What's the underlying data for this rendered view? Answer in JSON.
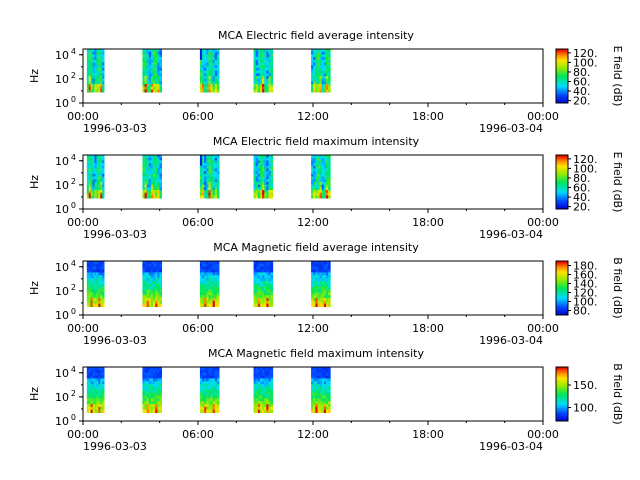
{
  "figure": {
    "date_start": "1996-03-03",
    "date_end": "1996-03-04"
  },
  "chart_data": [
    {
      "type": "heatmap",
      "title": "MCA  Electric field average intensity",
      "ylabel": "Hz",
      "x_ticks": [
        "00:00",
        "06:00",
        "12:00",
        "18:00",
        "00:00"
      ],
      "x_range": [
        "1996-03-03T00:00",
        "1996-03-04T00:00"
      ],
      "y_scale": "log",
      "y_range": [
        1,
        30000
      ],
      "y_ticks": [
        {
          "value": 1,
          "base": "10",
          "exp": "0"
        },
        {
          "value": 100,
          "base": "10",
          "exp": "2"
        },
        {
          "value": 10000,
          "base": "10",
          "exp": "4"
        }
      ],
      "colorbar": {
        "label": "E field (dB)",
        "range": [
          15,
          128
        ],
        "ticks": [
          "20.",
          "40.",
          "60.",
          "80.",
          "100.",
          "120."
        ],
        "tick_values": [
          20,
          40,
          60,
          80,
          100,
          120
        ]
      },
      "passes": [
        {
          "start_h": 0.2,
          "end_h": 1.1
        },
        {
          "start_h": 3.1,
          "end_h": 4.1
        },
        {
          "start_h": 6.1,
          "end_h": 7.1
        },
        {
          "start_h": 8.9,
          "end_h": 9.9
        },
        {
          "start_h": 11.9,
          "end_h": 12.9
        }
      ],
      "low_freq_limit_hz": 8
    },
    {
      "type": "heatmap",
      "title": "MCA  Electric field maximum intensity",
      "ylabel": "Hz",
      "x_ticks": [
        "00:00",
        "06:00",
        "12:00",
        "18:00",
        "00:00"
      ],
      "x_range": [
        "1996-03-03T00:00",
        "1996-03-04T00:00"
      ],
      "y_scale": "log",
      "y_range": [
        1,
        30000
      ],
      "y_ticks": [
        {
          "value": 1,
          "base": "10",
          "exp": "0"
        },
        {
          "value": 100,
          "base": "10",
          "exp": "2"
        },
        {
          "value": 10000,
          "base": "10",
          "exp": "4"
        }
      ],
      "colorbar": {
        "label": "E field (dB)",
        "range": [
          15,
          128
        ],
        "ticks": [
          "20.",
          "40.",
          "60.",
          "80.",
          "100.",
          "120."
        ],
        "tick_values": [
          20,
          40,
          60,
          80,
          100,
          120
        ]
      },
      "passes": [
        {
          "start_h": 0.2,
          "end_h": 1.1
        },
        {
          "start_h": 3.1,
          "end_h": 4.1
        },
        {
          "start_h": 6.1,
          "end_h": 7.1
        },
        {
          "start_h": 8.9,
          "end_h": 9.9
        },
        {
          "start_h": 11.9,
          "end_h": 12.9
        }
      ],
      "low_freq_limit_hz": 8
    },
    {
      "type": "heatmap",
      "title": "MCA  Magnetic field average intensity",
      "ylabel": "Hz",
      "x_ticks": [
        "00:00",
        "06:00",
        "12:00",
        "18:00",
        "00:00"
      ],
      "x_range": [
        "1996-03-03T00:00",
        "1996-03-04T00:00"
      ],
      "y_scale": "log",
      "y_range": [
        1,
        30000
      ],
      "y_ticks": [
        {
          "value": 1,
          "base": "10",
          "exp": "0"
        },
        {
          "value": 100,
          "base": "10",
          "exp": "2"
        },
        {
          "value": 10000,
          "base": "10",
          "exp": "4"
        }
      ],
      "colorbar": {
        "label": "B field (dB)",
        "range": [
          70,
          190
        ],
        "ticks": [
          "80.",
          "100.",
          "120.",
          "140.",
          "160.",
          "180."
        ],
        "tick_values": [
          80,
          100,
          120,
          140,
          160,
          180
        ]
      },
      "passes": [
        {
          "start_h": 0.2,
          "end_h": 1.1
        },
        {
          "start_h": 3.1,
          "end_h": 4.1
        },
        {
          "start_h": 6.1,
          "end_h": 7.1
        },
        {
          "start_h": 8.9,
          "end_h": 9.9
        },
        {
          "start_h": 11.9,
          "end_h": 12.9
        }
      ],
      "low_freq_limit_hz": 5
    },
    {
      "type": "heatmap",
      "title": "MCA  Magnetic field maximum intensity",
      "ylabel": "Hz",
      "x_ticks": [
        "00:00",
        "06:00",
        "12:00",
        "18:00",
        "00:00"
      ],
      "x_range": [
        "1996-03-03T00:00",
        "1996-03-04T00:00"
      ],
      "y_scale": "log",
      "y_range": [
        1,
        30000
      ],
      "y_ticks": [
        {
          "value": 1,
          "base": "10",
          "exp": "0"
        },
        {
          "value": 100,
          "base": "10",
          "exp": "2"
        },
        {
          "value": 10000,
          "base": "10",
          "exp": "4"
        }
      ],
      "colorbar": {
        "label": "B field (dB)",
        "range": [
          70,
          190
        ],
        "ticks": [
          "100.",
          "150."
        ],
        "tick_values": [
          100,
          150
        ]
      },
      "passes": [
        {
          "start_h": 0.2,
          "end_h": 1.1
        },
        {
          "start_h": 3.1,
          "end_h": 4.1
        },
        {
          "start_h": 6.1,
          "end_h": 7.1
        },
        {
          "start_h": 8.9,
          "end_h": 9.9
        },
        {
          "start_h": 11.9,
          "end_h": 12.9
        }
      ],
      "low_freq_limit_hz": 5
    }
  ]
}
